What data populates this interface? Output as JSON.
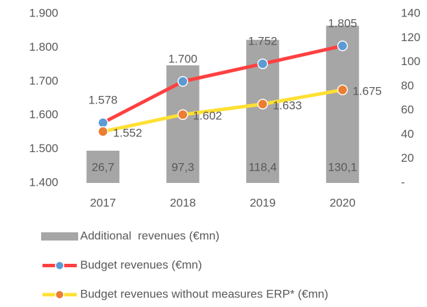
{
  "chart_data": {
    "type": "bar-line",
    "categories": [
      "2017",
      "2018",
      "2019",
      "2020"
    ],
    "series": [
      {
        "name": "Additional  revenues (€mn)",
        "type": "bar",
        "axis": "y2",
        "color": "#a6a6a6",
        "values": [
          26.7,
          97.3,
          118.4,
          130.1
        ],
        "value_labels": [
          "26,7",
          "97,3",
          "118,4",
          "130,1"
        ]
      },
      {
        "name": "Budget revenues (€mn)",
        "type": "line",
        "color": "#ff4040",
        "marker_color": "#5b9bd5",
        "values": [
          1578,
          1700,
          1752,
          1805
        ],
        "value_labels": [
          "1.578",
          "1.700",
          "1.752",
          "1.805"
        ]
      },
      {
        "name": "Budget revenues without measures ERP* (€mn)",
        "type": "line",
        "color": "#ffe033",
        "marker_color": "#ed7d31",
        "values": [
          1552,
          1602,
          1633,
          1675
        ],
        "value_labels": [
          "1.552",
          "1.602",
          "1.633",
          "1.675"
        ]
      }
    ],
    "ylim": [
      1400,
      1900
    ],
    "yticks": [
      {
        "value": 1400,
        "label": "1.400"
      },
      {
        "value": 1500,
        "label": "1.500"
      },
      {
        "value": 1600,
        "label": "1.600"
      },
      {
        "value": 1700,
        "label": "1.700"
      },
      {
        "value": 1800,
        "label": "1.800"
      },
      {
        "value": 1900,
        "label": "1.900"
      }
    ],
    "y2lim": [
      0,
      140
    ],
    "y2ticks": [
      {
        "value": 0,
        "label": "-"
      },
      20,
      40,
      60,
      80,
      100,
      120,
      140
    ],
    "legend": "bottom"
  }
}
